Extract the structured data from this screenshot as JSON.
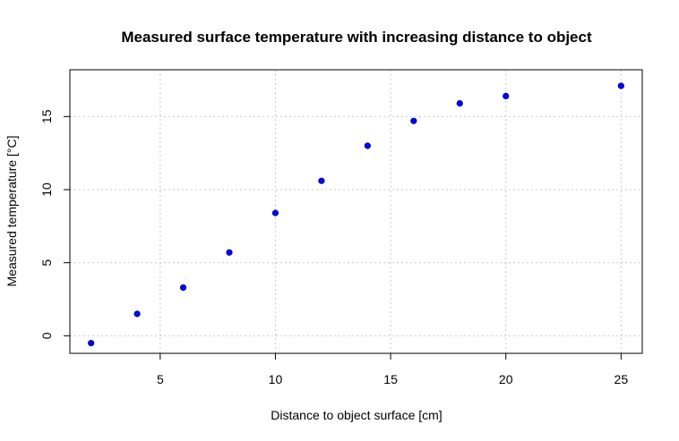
{
  "chart_data": {
    "type": "scatter",
    "title": "Measured surface temperature with increasing distance to object",
    "xlabel": "Distance to object surface [cm]",
    "ylabel": "Measured temperature [°C]",
    "xlim": [
      1.08,
      25.92
    ],
    "ylim": [
      -1.2,
      18.2
    ],
    "x_ticks": [
      5,
      10,
      15,
      20,
      25
    ],
    "y_ticks": [
      0,
      5,
      10,
      15
    ],
    "grid": true,
    "legend": "none",
    "point_color": "#0000ff",
    "point_outline": "#000080",
    "x": [
      2,
      4,
      6,
      8,
      10,
      12,
      14,
      16,
      18,
      20,
      25
    ],
    "y": [
      -0.5,
      1.5,
      3.3,
      5.7,
      8.4,
      10.6,
      13.0,
      14.7,
      15.9,
      16.4,
      17.1
    ]
  }
}
